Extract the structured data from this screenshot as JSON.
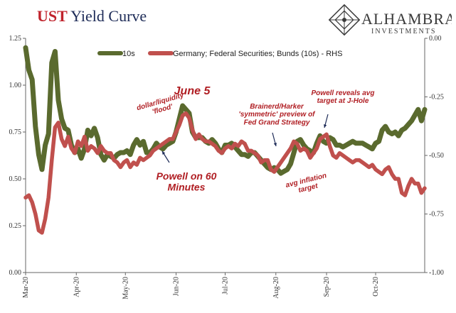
{
  "title": {
    "part1": "UST",
    "part2": "Yield Curve"
  },
  "logo": {
    "name": "ALHAMBRA",
    "sub": "INVESTMENTS",
    "icon": "alhambra-diamond-logo-icon"
  },
  "colors": {
    "ust": "#5a6a2e",
    "bund": "#c0504d",
    "title_red": "#c0232c",
    "annot": "#b01e23"
  },
  "chart_data": {
    "type": "line",
    "x": [
      "2020-03-01",
      "2020-03-03",
      "2020-03-05",
      "2020-03-07",
      "2020-03-09",
      "2020-03-11",
      "2020-03-13",
      "2020-03-15",
      "2020-03-17",
      "2020-03-19",
      "2020-03-21",
      "2020-03-23",
      "2020-03-25",
      "2020-03-27",
      "2020-03-29",
      "2020-03-31",
      "2020-04-02",
      "2020-04-04",
      "2020-04-06",
      "2020-04-08",
      "2020-04-10",
      "2020-04-12",
      "2020-04-14",
      "2020-04-16",
      "2020-04-18",
      "2020-04-20",
      "2020-04-22",
      "2020-04-24",
      "2020-04-26",
      "2020-04-28",
      "2020-04-30",
      "2020-05-02",
      "2020-05-04",
      "2020-05-06",
      "2020-05-08",
      "2020-05-10",
      "2020-05-12",
      "2020-05-14",
      "2020-05-16",
      "2020-05-18",
      "2020-05-20",
      "2020-05-22",
      "2020-05-24",
      "2020-05-26",
      "2020-05-28",
      "2020-05-30",
      "2020-06-01",
      "2020-06-03",
      "2020-06-05",
      "2020-06-07",
      "2020-06-09",
      "2020-06-11",
      "2020-06-13",
      "2020-06-15",
      "2020-06-17",
      "2020-06-19",
      "2020-06-21",
      "2020-06-23",
      "2020-06-25",
      "2020-06-27",
      "2020-06-29",
      "2020-07-01",
      "2020-07-03",
      "2020-07-05",
      "2020-07-07",
      "2020-07-09",
      "2020-07-11",
      "2020-07-13",
      "2020-07-15",
      "2020-07-17",
      "2020-07-19",
      "2020-07-21",
      "2020-07-23",
      "2020-07-25",
      "2020-07-27",
      "2020-07-29",
      "2020-07-31",
      "2020-08-02",
      "2020-08-04",
      "2020-08-06",
      "2020-08-08",
      "2020-08-10",
      "2020-08-12",
      "2020-08-14",
      "2020-08-16",
      "2020-08-18",
      "2020-08-20",
      "2020-08-22",
      "2020-08-24",
      "2020-08-26",
      "2020-08-28",
      "2020-08-30",
      "2020-09-01",
      "2020-09-03",
      "2020-09-05",
      "2020-09-07",
      "2020-09-09",
      "2020-09-11",
      "2020-09-13",
      "2020-09-15",
      "2020-09-17",
      "2020-09-19",
      "2020-09-21",
      "2020-09-23",
      "2020-09-25",
      "2020-09-27",
      "2020-09-29",
      "2020-10-01",
      "2020-10-03",
      "2020-10-05",
      "2020-10-07",
      "2020-10-09",
      "2020-10-11",
      "2020-10-13",
      "2020-10-15",
      "2020-10-17",
      "2020-10-19",
      "2020-10-21",
      "2020-10-23",
      "2020-10-25",
      "2020-10-27",
      "2020-10-29",
      "2020-10-31"
    ],
    "series": [
      {
        "name": "10s",
        "axis": "left",
        "values": [
          1.2,
          1.08,
          1.03,
          0.78,
          0.63,
          0.55,
          0.68,
          0.74,
          1.12,
          1.18,
          0.92,
          0.82,
          0.77,
          0.76,
          0.68,
          0.64,
          0.66,
          0.61,
          0.66,
          0.76,
          0.73,
          0.77,
          0.72,
          0.63,
          0.6,
          0.63,
          0.62,
          0.61,
          0.63,
          0.64,
          0.64,
          0.65,
          0.63,
          0.68,
          0.71,
          0.68,
          0.7,
          0.64,
          0.64,
          0.66,
          0.69,
          0.67,
          0.66,
          0.68,
          0.69,
          0.7,
          0.75,
          0.82,
          0.89,
          0.87,
          0.85,
          0.75,
          0.72,
          0.72,
          0.72,
          0.7,
          0.69,
          0.71,
          0.69,
          0.66,
          0.64,
          0.68,
          0.68,
          0.69,
          0.67,
          0.65,
          0.63,
          0.63,
          0.62,
          0.64,
          0.64,
          0.62,
          0.6,
          0.58,
          0.56,
          0.55,
          0.56,
          0.55,
          0.53,
          0.54,
          0.55,
          0.58,
          0.64,
          0.7,
          0.71,
          0.68,
          0.66,
          0.65,
          0.64,
          0.69,
          0.73,
          0.7,
          0.69,
          0.72,
          0.71,
          0.68,
          0.68,
          0.67,
          0.68,
          0.69,
          0.7,
          0.69,
          0.69,
          0.69,
          0.68,
          0.67,
          0.66,
          0.69,
          0.7,
          0.76,
          0.78,
          0.75,
          0.74,
          0.75,
          0.73,
          0.76,
          0.77,
          0.79,
          0.81,
          0.84,
          0.87,
          0.81,
          0.87
        ]
      },
      {
        "name": "Germany; Federal Securities; Bunds (10s) - RHS",
        "axis": "right",
        "values": [
          -0.68,
          -0.67,
          -0.7,
          -0.75,
          -0.82,
          -0.83,
          -0.77,
          -0.68,
          -0.52,
          -0.38,
          -0.36,
          -0.43,
          -0.46,
          -0.42,
          -0.47,
          -0.49,
          -0.44,
          -0.46,
          -0.42,
          -0.48,
          -0.46,
          -0.47,
          -0.49,
          -0.46,
          -0.48,
          -0.49,
          -0.49,
          -0.52,
          -0.53,
          -0.55,
          -0.53,
          -0.52,
          -0.55,
          -0.53,
          -0.54,
          -0.51,
          -0.52,
          -0.51,
          -0.5,
          -0.48,
          -0.47,
          -0.46,
          -0.45,
          -0.44,
          -0.43,
          -0.43,
          -0.4,
          -0.37,
          -0.33,
          -0.32,
          -0.34,
          -0.39,
          -0.43,
          -0.41,
          -0.43,
          -0.44,
          -0.44,
          -0.45,
          -0.46,
          -0.48,
          -0.49,
          -0.47,
          -0.46,
          -0.47,
          -0.45,
          -0.46,
          -0.44,
          -0.45,
          -0.48,
          -0.48,
          -0.49,
          -0.5,
          -0.53,
          -0.52,
          -0.52,
          -0.56,
          -0.57,
          -0.55,
          -0.53,
          -0.51,
          -0.49,
          -0.47,
          -0.44,
          -0.45,
          -0.48,
          -0.47,
          -0.48,
          -0.51,
          -0.49,
          -0.47,
          -0.43,
          -0.42,
          -0.41,
          -0.46,
          -0.5,
          -0.51,
          -0.49,
          -0.5,
          -0.51,
          -0.52,
          -0.53,
          -0.52,
          -0.52,
          -0.53,
          -0.54,
          -0.55,
          -0.54,
          -0.56,
          -0.57,
          -0.58,
          -0.56,
          -0.55,
          -0.58,
          -0.6,
          -0.6,
          -0.66,
          -0.67,
          -0.63,
          -0.6,
          -0.62,
          -0.62,
          -0.66,
          -0.64
        ]
      }
    ],
    "yaxis_left": {
      "min": 0,
      "max": 1.25,
      "ticks": [
        "0.00",
        "0.25",
        "0.50",
        "0.75",
        "1.00",
        "1.25"
      ]
    },
    "yaxis_right": {
      "min": -1.0,
      "max": 0.0,
      "ticks": [
        "-1.00",
        "-0.75",
        "-0.50",
        "-0.25",
        "0.00"
      ]
    },
    "xaxis": {
      "min": "2020-03-01",
      "max": "2020-10-31",
      "ticks": [
        {
          "date": "2020-03-01",
          "label": "Mar-20"
        },
        {
          "date": "2020-04-01",
          "label": "Apr-20"
        },
        {
          "date": "2020-05-01",
          "label": "May-20"
        },
        {
          "date": "2020-06-01",
          "label": "Jun-20"
        },
        {
          "date": "2020-07-01",
          "label": "Jul-20"
        },
        {
          "date": "2020-08-01",
          "label": "Aug-20"
        },
        {
          "date": "2020-09-01",
          "label": "Sep-20"
        },
        {
          "date": "2020-10-01",
          "label": "Oct-20"
        }
      ]
    },
    "legend_position": "top",
    "grid": false,
    "annotations": [
      {
        "lines": [
          "June 5"
        ],
        "size": "large"
      },
      {
        "lines": [
          "dollar/liquidity",
          "'flood'"
        ],
        "size": "small",
        "rotate": true
      },
      {
        "lines": [
          "Powell on 60",
          "Minutes"
        ],
        "size": "medium"
      },
      {
        "lines": [
          "Brainerd/Harker",
          "'symmetric' preview of",
          "Fed Grand Strategy"
        ],
        "size": "small"
      },
      {
        "lines": [
          "Powell reveals avg",
          "target at J-Hole"
        ],
        "size": "small"
      },
      {
        "lines": [
          "avg inflation",
          "target"
        ],
        "size": "small",
        "rotate": true
      }
    ]
  }
}
